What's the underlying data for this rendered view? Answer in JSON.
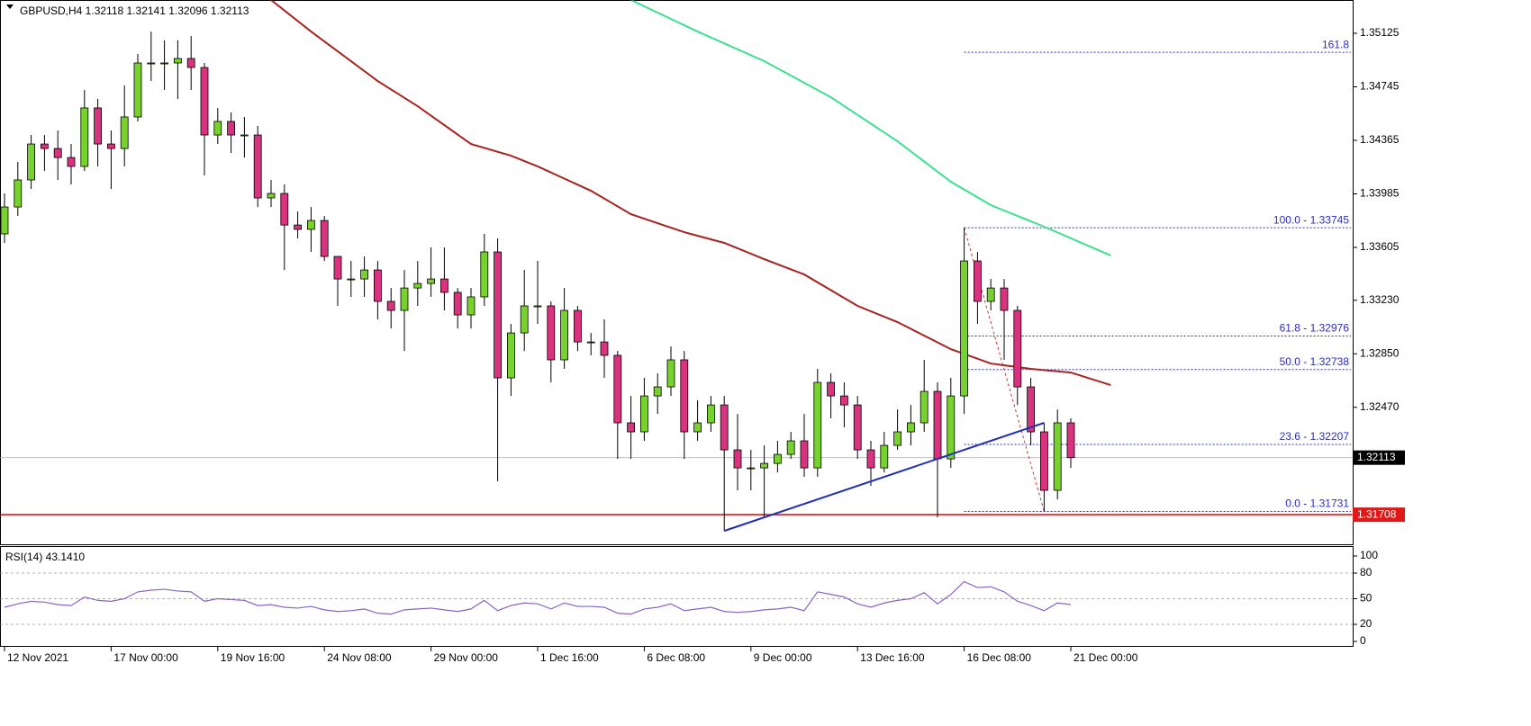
{
  "chart_data": {
    "type": "candlestick",
    "title": "GBPUSD,H4  1.32118 1.32141 1.32096 1.32113",
    "categories": [
      "12 Nov 2021",
      null,
      null,
      null,
      null,
      null,
      null,
      null,
      "17 Nov 00:00",
      null,
      null,
      null,
      null,
      null,
      null,
      null,
      "19 Nov 16:00",
      null,
      null,
      null,
      null,
      null,
      null,
      null,
      "24 Nov 08:00",
      null,
      null,
      null,
      null,
      null,
      null,
      null,
      "29 Nov 00:00",
      null,
      null,
      null,
      null,
      null,
      null,
      null,
      "1 Dec 16:00",
      null,
      null,
      null,
      null,
      null,
      null,
      null,
      "6 Dec 08:00",
      null,
      null,
      null,
      null,
      null,
      null,
      null,
      "9 Dec 00:00",
      null,
      null,
      null,
      null,
      null,
      null,
      null,
      "13 Dec 16:00",
      null,
      null,
      null,
      null,
      null,
      null,
      null,
      "16 Dec 08:00",
      null,
      null,
      null,
      null,
      null,
      null,
      null,
      "21 Dec 00:00"
    ],
    "open": [
      1.33701,
      1.33892,
      1.34084,
      1.34339,
      1.34307,
      1.34243,
      1.3418,
      1.34595,
      1.34339,
      1.34307,
      1.34531,
      1.34914,
      1.34914,
      1.34914,
      1.34946,
      1.34882,
      1.34403,
      1.34499,
      1.34403,
      1.34403,
      1.33956,
      1.33988,
      1.33764,
      1.33733,
      1.33796,
      1.33541,
      1.33381,
      1.33381,
      1.33445,
      1.33222,
      1.33158,
      1.33317,
      1.33349,
      1.33381,
      1.33286,
      1.33126,
      1.33254,
      1.33573,
      1.32679,
      1.32998,
      1.3319,
      1.3319,
      1.32807,
      1.33158,
      1.32934,
      1.32934,
      1.32839,
      1.3236,
      1.32296,
      1.32551,
      1.32615,
      1.32807,
      1.32296,
      1.3236,
      1.32487,
      1.32168,
      1.3204,
      1.3204,
      1.32072,
      1.32136,
      1.32232,
      1.3204,
      1.32647,
      1.32551,
      1.32487,
      1.32168,
      1.3204,
      1.322,
      1.32296,
      1.3236,
      1.32583,
      1.32104,
      1.32551,
      1.33509,
      1.33222,
      1.33317,
      1.33158,
      1.32615,
      1.32296,
      1.31881,
      1.3236
    ],
    "high": [
      1.33988,
      1.34212,
      1.34403,
      1.34403,
      1.34435,
      1.34339,
      1.34722,
      1.34659,
      1.34435,
      1.34754,
      1.34978,
      1.35137,
      1.35074,
      1.35074,
      1.35106,
      1.34914,
      1.34595,
      1.34563,
      1.34531,
      1.34467,
      1.34084,
      1.34052,
      1.3386,
      1.33892,
      1.33828,
      1.33541,
      1.33509,
      1.33541,
      1.33509,
      1.33317,
      1.33445,
      1.33509,
      1.33605,
      1.33605,
      1.33317,
      1.33317,
      1.33701,
      1.33669,
      1.33062,
      1.33445,
      1.33509,
      1.33222,
      1.33317,
      1.3319,
      1.32998,
      1.33094,
      1.3287,
      1.32551,
      1.32679,
      1.32711,
      1.32902,
      1.3287,
      1.32519,
      1.32551,
      1.32551,
      1.32423,
      1.32168,
      1.322,
      1.32232,
      1.32296,
      1.32423,
      1.32743,
      1.32711,
      1.32647,
      1.32551,
      1.32232,
      1.32296,
      1.32455,
      1.32487,
      1.32807,
      1.32647,
      1.32679,
      1.33745,
      1.33573,
      1.33381,
      1.33381,
      1.3319,
      1.32679,
      1.3236,
      1.32455,
      1.32392
    ],
    "low": [
      1.33637,
      1.33828,
      1.3402,
      1.34148,
      1.34084,
      1.34052,
      1.34148,
      1.3418,
      1.3402,
      1.3418,
      1.34499,
      1.34786,
      1.34722,
      1.34659,
      1.34722,
      1.34116,
      1.34339,
      1.34275,
      1.34243,
      1.33892,
      1.33892,
      1.33445,
      1.33669,
      1.33573,
      1.33509,
      1.3319,
      1.33254,
      1.33254,
      1.33094,
      1.3303,
      1.3287,
      1.3319,
      1.33254,
      1.33158,
      1.3303,
      1.3303,
      1.3319,
      1.31945,
      1.32551,
      1.3287,
      1.33062,
      1.32647,
      1.32743,
      1.3287,
      1.32839,
      1.32679,
      1.32104,
      1.32104,
      1.32232,
      1.32423,
      1.32551,
      1.32104,
      1.32232,
      1.32296,
      1.31593,
      1.31881,
      1.31881,
      1.31689,
      1.32008,
      1.32104,
      1.31977,
      1.31977,
      1.32392,
      1.32328,
      1.32104,
      1.31913,
      1.32008,
      1.32168,
      1.322,
      1.32296,
      1.31689,
      1.3204,
      1.32423,
      1.33062,
      1.33158,
      1.32807,
      1.32487,
      1.322,
      1.31731,
      1.31817,
      1.3204
    ],
    "close": [
      1.33892,
      1.34084,
      1.34339,
      1.34307,
      1.34243,
      1.3418,
      1.34595,
      1.34339,
      1.34307,
      1.34531,
      1.34914,
      1.34914,
      1.34914,
      1.34946,
      1.34882,
      1.34403,
      1.34499,
      1.34403,
      1.34403,
      1.33956,
      1.33988,
      1.33764,
      1.33733,
      1.33796,
      1.33541,
      1.33381,
      1.33381,
      1.33445,
      1.33222,
      1.33158,
      1.33317,
      1.33349,
      1.33381,
      1.33286,
      1.33126,
      1.33254,
      1.33573,
      1.32679,
      1.32998,
      1.3319,
      1.3319,
      1.32807,
      1.33158,
      1.32934,
      1.32934,
      1.32839,
      1.3236,
      1.32296,
      1.32551,
      1.32615,
      1.32807,
      1.32296,
      1.3236,
      1.32487,
      1.32168,
      1.3204,
      1.3204,
      1.32072,
      1.32136,
      1.32232,
      1.3204,
      1.32647,
      1.32551,
      1.32487,
      1.32168,
      1.3204,
      1.322,
      1.32296,
      1.3236,
      1.32583,
      1.32104,
      1.32551,
      1.33509,
      1.33222,
      1.33317,
      1.33158,
      1.32615,
      1.32296,
      1.31881,
      1.3236,
      1.32113
    ],
    "up_color": "#78d22e",
    "down_color": "#d9327e",
    "ylim": [
      1.31498,
      1.35361
    ],
    "yticks": [
      1.35125,
      1.34745,
      1.34365,
      1.33985,
      1.33605,
      {
        "value": 1.3323,
        "label": "1.33230"
      },
      {
        "value": 1.3285,
        "label": "1.32850"
      },
      {
        "value": 1.3247,
        "label": "1.32470"
      }
    ],
    "moving_averages": [
      {
        "color": "#a8231f",
        "x": [
          20,
          23,
          28,
          31,
          35,
          38,
          40,
          44,
          47,
          51,
          54,
          57,
          60,
          64,
          67,
          71,
          74,
          77,
          80,
          83
        ],
        "values": [
          1.35361,
          1.35137,
          1.34786,
          1.34607,
          1.34339,
          1.34256,
          1.3418,
          1.34007,
          1.33841,
          1.33713,
          1.33637,
          1.33522,
          1.33413,
          1.3319,
          1.33075,
          1.32883,
          1.32781,
          1.32743,
          1.32717,
          1.32628
        ]
      },
      {
        "color": "#3de08c",
        "x": [
          47,
          52,
          57,
          62,
          67,
          71,
          74,
          78,
          83
        ],
        "values": [
          1.35361,
          1.35137,
          1.34927,
          1.34671,
          1.34358,
          1.34071,
          1.33905,
          1.33752,
          1.33547
        ]
      }
    ],
    "trendlines": [
      {
        "color": "#1f2fb8",
        "x": [
          54,
          78
        ],
        "values": [
          1.31593,
          1.3236
        ]
      }
    ],
    "support_level": {
      "value": 1.31708,
      "color": "#e01818"
    },
    "current_price": 1.32113,
    "fibonacci": {
      "color": "#2b2bc8",
      "x": [
        72,
        78
      ],
      "levels": [
        {
          "value": 1.3499,
          "label": "161.8"
        },
        {
          "value": 1.33745,
          "label": "100.0 - 1.33745"
        },
        {
          "value": 1.32976,
          "label": "61.8 - 1.32976"
        },
        {
          "value": 1.32738,
          "label": "50.0 - 1.32738"
        },
        {
          "value": 1.32207,
          "label": "23.6 - 1.32207"
        },
        {
          "value": 1.31731,
          "label": "0.0 - 1.31731"
        }
      ]
    },
    "indicator": {
      "label": "RSI(14) 43.1410",
      "color": "#8a63c8",
      "ylim": [
        0,
        100
      ],
      "yticks": [
        100,
        80,
        50,
        20,
        0
      ],
      "levels": [
        80,
        50,
        20
      ],
      "values": [
        40,
        44,
        47,
        46,
        43,
        42,
        52,
        48,
        47,
        50,
        58,
        60,
        61,
        59,
        58,
        47,
        50,
        49,
        48,
        42,
        43,
        40,
        39,
        41,
        37,
        35,
        36,
        38,
        33,
        32,
        37,
        38,
        39,
        37,
        35,
        38,
        48,
        36,
        42,
        45,
        44,
        38,
        45,
        41,
        41,
        40,
        33,
        32,
        38,
        40,
        44,
        36,
        38,
        40,
        35,
        34,
        35,
        37,
        38,
        40,
        36,
        58,
        55,
        52,
        44,
        40,
        45,
        48,
        50,
        57,
        44,
        55,
        70,
        63,
        64,
        58,
        47,
        42,
        36,
        45,
        43.141
      ]
    }
  }
}
